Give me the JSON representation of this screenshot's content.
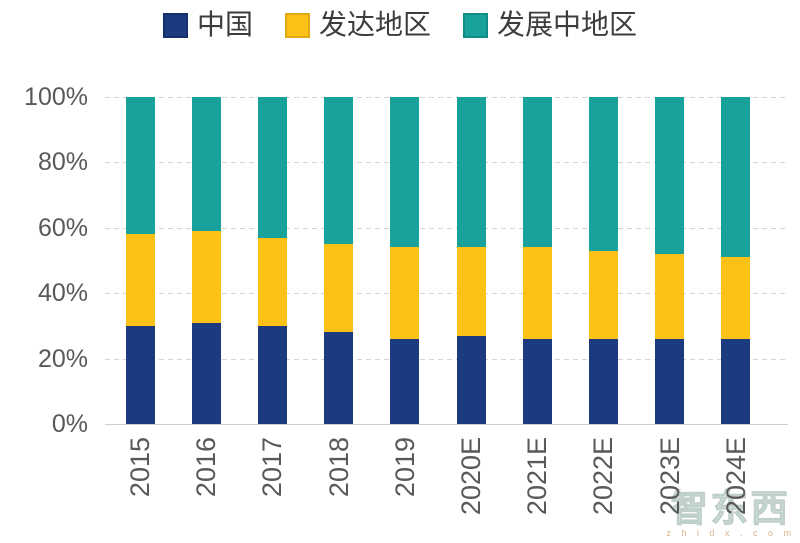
{
  "chart_data": {
    "type": "bar",
    "stacked": true,
    "percent": true,
    "categories": [
      "2015",
      "2016",
      "2017",
      "2018",
      "2019",
      "2020E",
      "2021E",
      "2022E",
      "2023E",
      "2024E"
    ],
    "series": [
      {
        "name": "中国",
        "color": "#1B3A80",
        "border": "#14306B",
        "values": [
          30,
          31,
          30,
          28,
          26,
          27,
          26,
          26,
          26,
          26
        ]
      },
      {
        "name": "发达地区",
        "color": "#FBC116",
        "border": "#DFA912",
        "values": [
          28,
          28,
          27,
          27,
          28,
          27,
          28,
          27,
          26,
          25
        ]
      },
      {
        "name": "发展中地区",
        "color": "#18A29B",
        "border": "#0F8A84",
        "values": [
          42,
          41,
          43,
          45,
          46,
          46,
          46,
          47,
          48,
          49
        ]
      }
    ],
    "y_ticks": [
      {
        "label": "100%",
        "value": 100
      },
      {
        "label": "80%",
        "value": 80
      },
      {
        "label": "60%",
        "value": 60
      },
      {
        "label": "40%",
        "value": 40
      },
      {
        "label": "20%",
        "value": 20
      },
      {
        "label": "0%",
        "value": 0
      }
    ],
    "ylim": [
      0,
      100
    ],
    "grid": "dashed-horizontal",
    "legend_position": "top-center"
  },
  "colors": {
    "background": "#FFFFFF",
    "axis_text": "#595959",
    "legend_text": "#3D3D3D",
    "gridline": "#D4D4D4",
    "axis_line": "#CFCFCF",
    "watermark_outline": "#BFD0CC",
    "watermark_subtext": "#D8B48C"
  },
  "watermark": {
    "logo_text": "智东西",
    "sub_text": "z h i d x . c o m"
  }
}
